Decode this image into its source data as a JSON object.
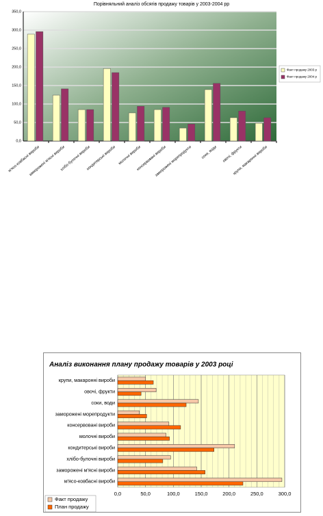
{
  "chart_data": [
    {
      "type": "bar",
      "title": "Порівняльний аналіз обсягів продажу товарів у 2003-2004 рр",
      "categories": [
        "м'ясо-ковбасні вироби",
        "заморожені м'ясні вироби",
        "хлібо-булочні вироби",
        "кондитерські вироби",
        "молочні вироби",
        "консервовані вироби",
        "заморожені морепродукти",
        "соки, води",
        "овочі, фрукти",
        "крупи, макаронні вироби"
      ],
      "series": [
        {
          "name": "Факт продажу 2003 р",
          "color": "#ffffc0",
          "values": [
            289,
            124,
            85,
            196,
            76,
            85,
            35,
            139,
            63,
            48
          ]
        },
        {
          "name": "Факт продажу 2004 р",
          "color": "#993366",
          "values": [
            296,
            141,
            85,
            185,
            94,
            91,
            46,
            156,
            81,
            63
          ]
        }
      ],
      "ylim": [
        0,
        350
      ],
      "yticks": [
        {
          "value": 0,
          "label": "0,0"
        },
        {
          "value": 50,
          "label": "50,0"
        },
        {
          "value": 100,
          "label": "100,0"
        },
        {
          "value": 150,
          "label": "150,0"
        },
        {
          "value": 200,
          "label": "200,0"
        },
        {
          "value": 250,
          "label": "250,0"
        },
        {
          "value": 300,
          "label": "300,0"
        },
        {
          "value": 350,
          "label": "350,0"
        }
      ],
      "grid": true,
      "legend": "right"
    },
    {
      "type": "barh",
      "title": "Аналіз виконання плану продажу товарів у 2003 році",
      "categories": [
        "м'ясо-ковбасні вироби",
        "заморожені м'ясні вироби",
        "хлібо-булочні вироби",
        "кондитерські вироби",
        "молочні вироби",
        "консервовані вироби",
        "заморожені морепродукти",
        "соки, води",
        "овочі, фрукти",
        "крупи, макаронні вироби"
      ],
      "series": [
        {
          "name": "Факт продажу",
          "color": "#f6c8a8",
          "values": [
            295,
            142,
            95,
            210,
            87,
            92,
            39,
            145,
            69,
            50
          ]
        },
        {
          "name": "План продажу",
          "color": "#ff6600",
          "values": [
            225,
            157,
            81,
            173,
            93,
            113,
            52,
            123,
            42,
            64
          ]
        }
      ],
      "xlim": [
        0,
        300
      ],
      "xticks": [
        {
          "value": 0,
          "label": "0,0"
        },
        {
          "value": 50,
          "label": "50,0"
        },
        {
          "value": 100,
          "label": "100,0"
        },
        {
          "value": 150,
          "label": "150,0"
        },
        {
          "value": 200,
          "label": "200,0"
        },
        {
          "value": 250,
          "label": "250,0"
        },
        {
          "value": 300,
          "label": "300,0"
        }
      ],
      "grid": true,
      "legend": "bottom-left"
    }
  ]
}
